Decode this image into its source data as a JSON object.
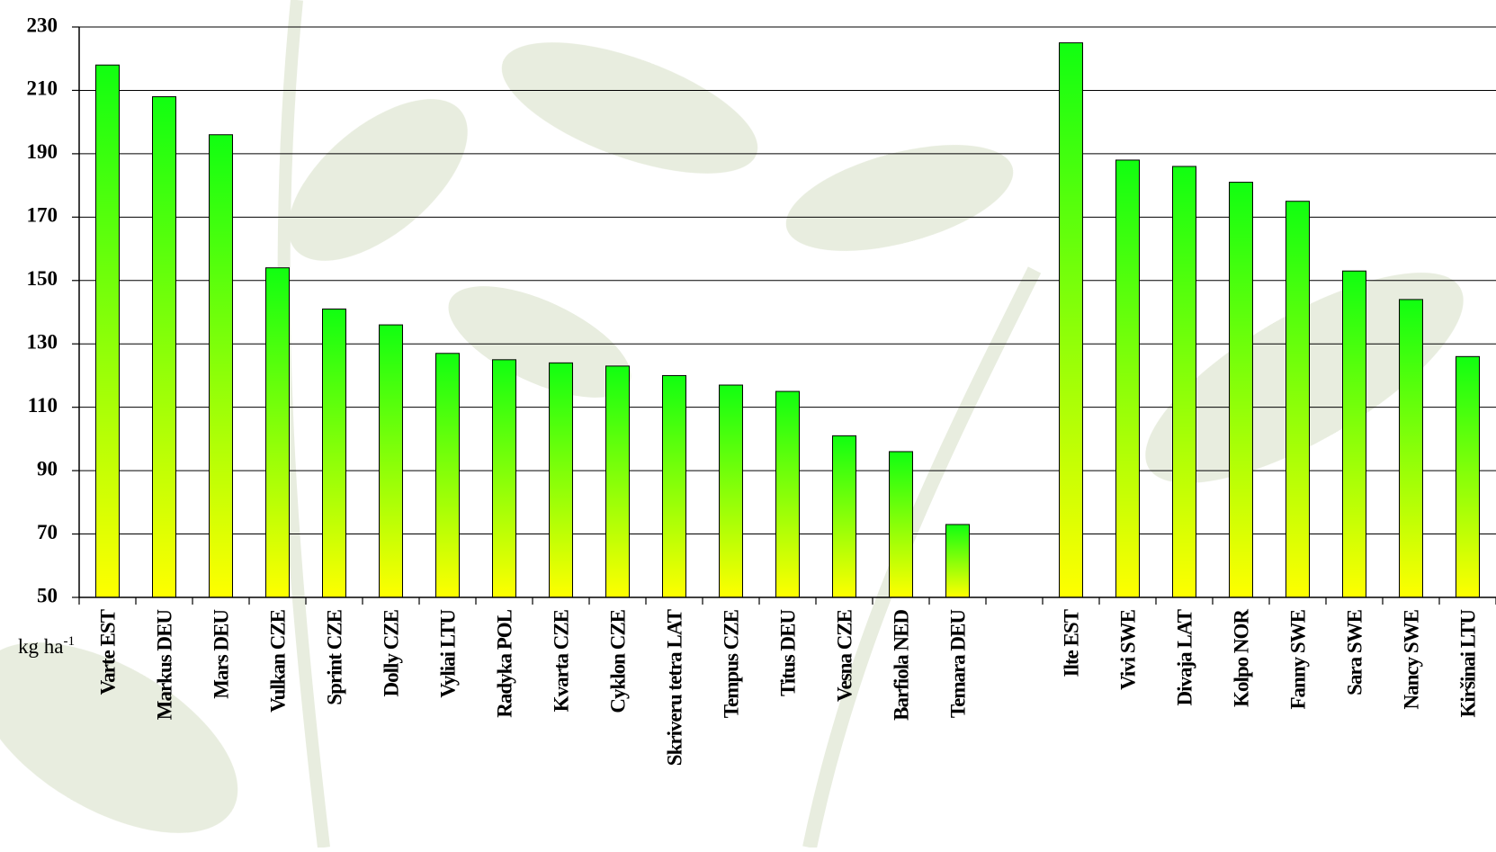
{
  "chart_data": {
    "type": "bar",
    "y_label": "kg ha",
    "y_label_superscript": "-1",
    "categories": [
      "Varte EST",
      "Markus DEU",
      "Mars DEU",
      "Vulkan CZE",
      "Sprint CZE",
      "Dolly CZE",
      "Vyliai LTU",
      "Radyka POL",
      "Kvarta CZE",
      "Cyklon CZE",
      "Skriveru tetra LAT",
      "Tempus CZE",
      "Titus DEU",
      "Vesna CZE",
      "Barfiola NED",
      "Temara DEU",
      null,
      "Ilte EST",
      "Vivi SWE",
      "Divaja LAT",
      "Kolpo NOR",
      "Fanny SWE",
      "Sara SWE",
      "Nancy SWE",
      "Kiršinai LTU"
    ],
    "values": [
      218,
      208,
      196,
      154,
      141,
      136,
      127,
      125,
      124,
      123,
      120,
      117,
      115,
      101,
      96,
      73,
      null,
      225,
      188,
      186,
      181,
      175,
      153,
      144,
      126
    ],
    "color_top": "#11ff11",
    "color_bottom": "#ffff00",
    "ylim": [
      50,
      230
    ],
    "yticks": [
      50,
      70,
      90,
      110,
      130,
      150,
      170,
      190,
      210,
      230
    ],
    "grid": true
  }
}
